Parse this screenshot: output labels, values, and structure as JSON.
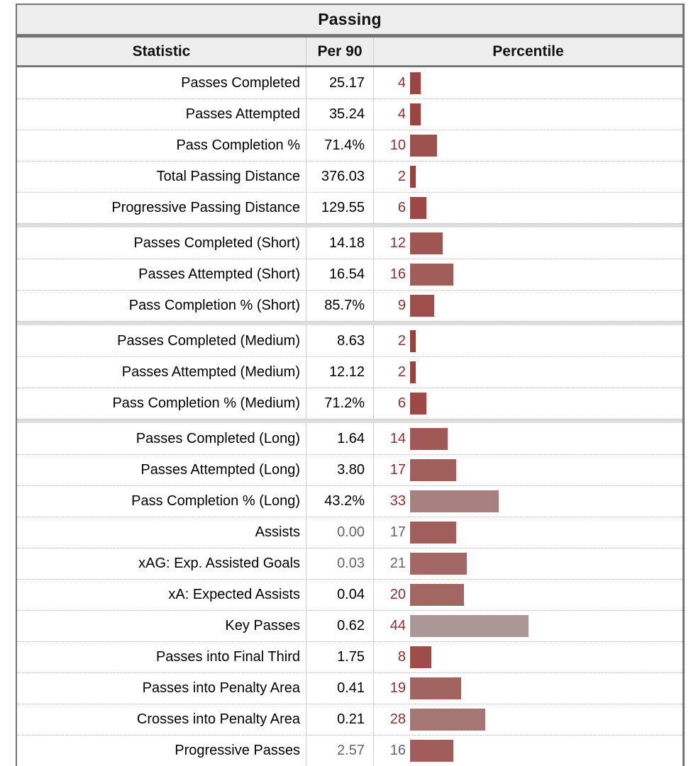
{
  "table": {
    "title": "Passing",
    "columns": [
      "Statistic",
      "Per 90",
      "Percentile"
    ],
    "groups": [
      {
        "rows": [
          {
            "stat": "Passes Completed",
            "per90": "25.17",
            "percentile": 4,
            "muted": false
          },
          {
            "stat": "Passes Attempted",
            "per90": "35.24",
            "percentile": 4,
            "muted": false
          },
          {
            "stat": "Pass Completion %",
            "per90": "71.4%",
            "percentile": 10,
            "muted": false
          },
          {
            "stat": "Total Passing Distance",
            "per90": "376.03",
            "percentile": 2,
            "muted": false
          },
          {
            "stat": "Progressive Passing Distance",
            "per90": "129.55",
            "percentile": 6,
            "muted": false
          }
        ]
      },
      {
        "rows": [
          {
            "stat": "Passes Completed (Short)",
            "per90": "14.18",
            "percentile": 12,
            "muted": false
          },
          {
            "stat": "Passes Attempted (Short)",
            "per90": "16.54",
            "percentile": 16,
            "muted": false
          },
          {
            "stat": "Pass Completion % (Short)",
            "per90": "85.7%",
            "percentile": 9,
            "muted": false
          }
        ]
      },
      {
        "rows": [
          {
            "stat": "Passes Completed (Medium)",
            "per90": "8.63",
            "percentile": 2,
            "muted": false
          },
          {
            "stat": "Passes Attempted (Medium)",
            "per90": "12.12",
            "percentile": 2,
            "muted": false
          },
          {
            "stat": "Pass Completion % (Medium)",
            "per90": "71.2%",
            "percentile": 6,
            "muted": false
          }
        ]
      },
      {
        "rows": [
          {
            "stat": "Passes Completed (Long)",
            "per90": "1.64",
            "percentile": 14,
            "muted": false
          },
          {
            "stat": "Passes Attempted (Long)",
            "per90": "3.80",
            "percentile": 17,
            "muted": false
          },
          {
            "stat": "Pass Completion % (Long)",
            "per90": "43.2%",
            "percentile": 33,
            "muted": false
          },
          {
            "stat": "Assists",
            "per90": "0.00",
            "percentile": 17,
            "muted": true
          },
          {
            "stat": "xAG: Exp. Assisted Goals",
            "per90": "0.03",
            "percentile": 21,
            "muted": true
          },
          {
            "stat": "xA: Expected Assists",
            "per90": "0.04",
            "percentile": 20,
            "muted": false
          },
          {
            "stat": "Key Passes",
            "per90": "0.62",
            "percentile": 44,
            "muted": false
          },
          {
            "stat": "Passes into Final Third",
            "per90": "1.75",
            "percentile": 8,
            "muted": false
          },
          {
            "stat": "Passes into Penalty Area",
            "per90": "0.41",
            "percentile": 19,
            "muted": false
          },
          {
            "stat": "Crosses into Penalty Area",
            "per90": "0.21",
            "percentile": 28,
            "muted": false
          },
          {
            "stat": "Progressive Passes",
            "per90": "2.57",
            "percentile": 16,
            "muted": true
          }
        ]
      }
    ]
  },
  "colors": {
    "header_bg": "#eeeeee",
    "border": "#757575",
    "column_divider": "#cccccc",
    "dotted_separator": "#bbbbbb",
    "percentile_number": "#8b2f2f",
    "muted_text": "#666666",
    "bar_low_percentile": "#9b3c38",
    "bar_mid_percentile": "#ada4a3"
  },
  "chart_data": {
    "type": "table",
    "title": "Passing",
    "columns": [
      "Statistic",
      "Per 90",
      "Percentile"
    ],
    "rows": [
      [
        "Passes Completed",
        "25.17",
        4
      ],
      [
        "Passes Attempted",
        "35.24",
        4
      ],
      [
        "Pass Completion %",
        "71.4%",
        10
      ],
      [
        "Total Passing Distance",
        "376.03",
        2
      ],
      [
        "Progressive Passing Distance",
        "129.55",
        6
      ],
      [
        "Passes Completed (Short)",
        "14.18",
        12
      ],
      [
        "Passes Attempted (Short)",
        "16.54",
        16
      ],
      [
        "Pass Completion % (Short)",
        "85.7%",
        9
      ],
      [
        "Passes Completed (Medium)",
        "8.63",
        2
      ],
      [
        "Passes Attempted (Medium)",
        "12.12",
        2
      ],
      [
        "Pass Completion % (Medium)",
        "71.2%",
        6
      ],
      [
        "Passes Completed (Long)",
        "1.64",
        14
      ],
      [
        "Passes Attempted (Long)",
        "3.80",
        17
      ],
      [
        "Pass Completion % (Long)",
        "43.2%",
        33
      ],
      [
        "Assists",
        "0.00",
        17
      ],
      [
        "xAG: Exp. Assisted Goals",
        "0.03",
        21
      ],
      [
        "xA: Expected Assists",
        "0.04",
        20
      ],
      [
        "Key Passes",
        "0.62",
        44
      ],
      [
        "Passes into Final Third",
        "1.75",
        8
      ],
      [
        "Passes into Penalty Area",
        "0.41",
        19
      ],
      [
        "Crosses into Penalty Area",
        "0.21",
        28
      ],
      [
        "Progressive Passes",
        "2.57",
        16
      ]
    ],
    "notes": "Percentile column rendered as horizontal bars; bar color shifts from dark red (low percentile) toward gray near the 50th percentile. Grayed-out Per 90 values: Assists, xAG, Progressive Passes."
  }
}
